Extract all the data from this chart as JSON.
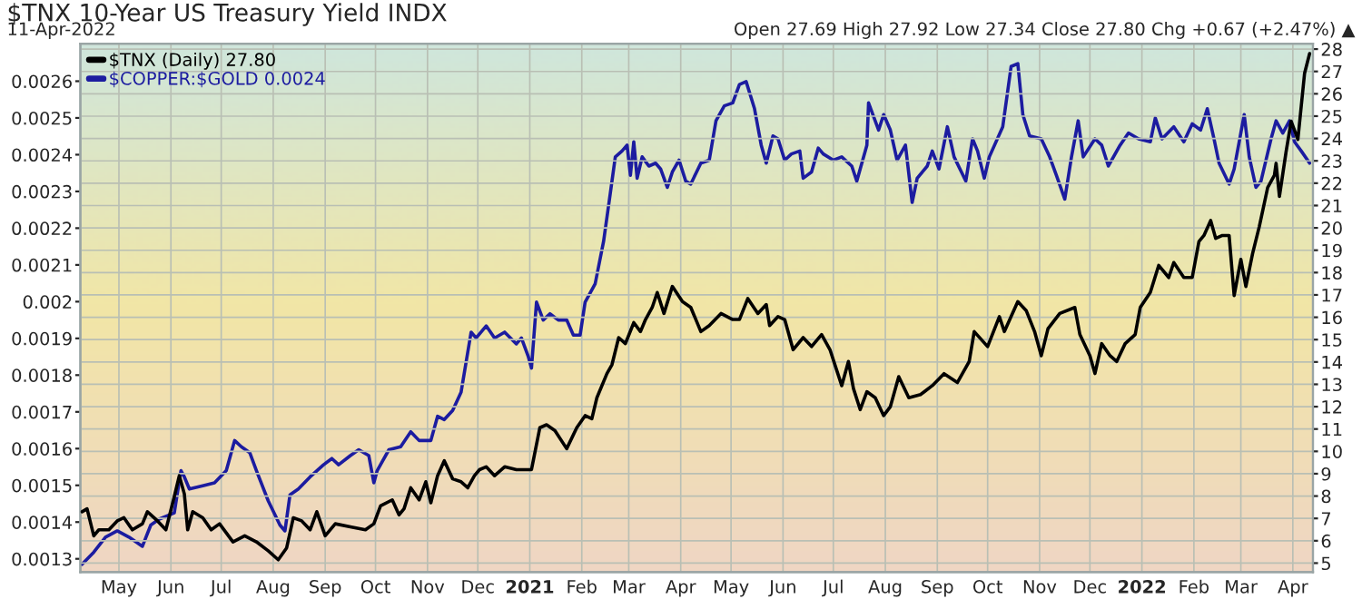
{
  "chart_data": {
    "type": "line",
    "title": "$TNX 10-Year US Treasury Yield INDX",
    "subtitle": "11-Apr-2022",
    "annotations": [
      "Open 27.69 High 27.92 Low 27.34 Close 27.80 Chg +0.67 (+2.47%) ▲"
    ],
    "series": [
      {
        "name": "$TNX (Daily) 27.80",
        "color": "#000000",
        "axis": "y2",
        "x": [
          "2020-04-09",
          "2020-04-12",
          "2020-04-16",
          "2020-04-19",
          "2020-04-25",
          "2020-04-30",
          "2020-05-04",
          "2020-05-09",
          "2020-05-15",
          "2020-05-18",
          "2020-05-24",
          "2020-05-29",
          "2020-06-03",
          "2020-06-06",
          "2020-06-09",
          "2020-06-11",
          "2020-06-14",
          "2020-06-20",
          "2020-06-25",
          "2020-06-30",
          "2020-07-08",
          "2020-07-15",
          "2020-07-22",
          "2020-07-29",
          "2020-08-04",
          "2020-08-09",
          "2020-08-13",
          "2020-08-18",
          "2020-08-23",
          "2020-08-27",
          "2020-09-01",
          "2020-09-07",
          "2020-09-16",
          "2020-09-25",
          "2020-09-30",
          "2020-10-04",
          "2020-10-11",
          "2020-10-15",
          "2020-10-18",
          "2020-10-22",
          "2020-10-27",
          "2020-10-31",
          "2020-11-03",
          "2020-11-07",
          "2020-11-11",
          "2020-11-16",
          "2020-11-21",
          "2020-11-25",
          "2020-11-29",
          "2020-12-02",
          "2020-12-06",
          "2020-12-11",
          "2020-12-17",
          "2020-12-24",
          "2021-01-02",
          "2021-01-07",
          "2021-01-11",
          "2021-01-16",
          "2021-01-23",
          "2021-01-29",
          "2021-02-03",
          "2021-02-07",
          "2021-02-10",
          "2021-02-16",
          "2021-02-19",
          "2021-02-23",
          "2021-02-27",
          "2021-03-04",
          "2021-03-08",
          "2021-03-11",
          "2021-03-15",
          "2021-03-18",
          "2021-03-22",
          "2021-03-27",
          "2021-04-02",
          "2021-04-07",
          "2021-04-13",
          "2021-04-18",
          "2021-04-25",
          "2021-05-02",
          "2021-05-06",
          "2021-05-11",
          "2021-05-17",
          "2021-05-22",
          "2021-05-24",
          "2021-05-29",
          "2021-06-02",
          "2021-06-07",
          "2021-06-13",
          "2021-06-18",
          "2021-06-24",
          "2021-06-29",
          "2021-07-06",
          "2021-07-10",
          "2021-07-13",
          "2021-07-17",
          "2021-07-21",
          "2021-07-26",
          "2021-07-31",
          "2021-08-04",
          "2021-08-09",
          "2021-08-15",
          "2021-08-22",
          "2021-08-29",
          "2021-09-05",
          "2021-09-13",
          "2021-09-20",
          "2021-09-23",
          "2021-10-01",
          "2021-10-08",
          "2021-10-11",
          "2021-10-19",
          "2021-10-24",
          "2021-10-29",
          "2021-11-02",
          "2021-11-06",
          "2021-11-13",
          "2021-11-22",
          "2021-11-25",
          "2021-12-01",
          "2021-12-04",
          "2021-12-08",
          "2021-12-13",
          "2021-12-17",
          "2021-12-22",
          "2021-12-28",
          "2021-12-31",
          "2022-01-06",
          "2022-01-11",
          "2022-01-17",
          "2022-01-20",
          "2022-01-26",
          "2022-01-31",
          "2022-02-04",
          "2022-02-07",
          "2022-02-11",
          "2022-02-14",
          "2022-02-18",
          "2022-02-22",
          "2022-02-25",
          "2022-03-01",
          "2022-03-04",
          "2022-03-08",
          "2022-03-12",
          "2022-03-17",
          "2022-03-21",
          "2022-03-22",
          "2022-03-24",
          "2022-03-28",
          "2022-03-31",
          "2022-04-04",
          "2022-04-08",
          "2022-04-11"
        ],
        "values": [
          7.3,
          7.43,
          6.22,
          6.49,
          6.49,
          6.89,
          7.03,
          6.49,
          6.76,
          7.3,
          6.89,
          6.49,
          7.97,
          8.91,
          8.1,
          6.49,
          7.3,
          7.03,
          6.49,
          6.76,
          5.95,
          6.22,
          5.95,
          5.55,
          5.15,
          5.68,
          7.03,
          6.89,
          6.49,
          7.3,
          6.22,
          6.76,
          6.62,
          6.49,
          6.76,
          7.56,
          7.83,
          7.16,
          7.43,
          8.37,
          7.83,
          8.64,
          7.7,
          8.91,
          9.58,
          8.77,
          8.64,
          8.37,
          8.91,
          9.18,
          9.31,
          8.91,
          9.31,
          9.18,
          9.18,
          11.06,
          11.19,
          10.93,
          10.12,
          11.06,
          11.6,
          11.46,
          12.4,
          13.48,
          13.88,
          15.09,
          14.82,
          15.76,
          15.36,
          15.9,
          16.44,
          17.11,
          16.17,
          17.38,
          16.7,
          16.44,
          15.36,
          15.63,
          16.17,
          15.9,
          15.9,
          16.84,
          16.17,
          16.57,
          15.63,
          16.03,
          15.9,
          14.55,
          15.09,
          14.69,
          15.23,
          14.55,
          12.94,
          14.02,
          12.81,
          11.87,
          12.67,
          12.4,
          11.6,
          12.0,
          13.34,
          12.4,
          12.54,
          12.94,
          13.48,
          13.08,
          14.02,
          15.36,
          14.69,
          16.03,
          15.36,
          16.7,
          16.3,
          15.36,
          14.28,
          15.49,
          16.17,
          16.44,
          15.23,
          14.28,
          13.48,
          14.82,
          14.28,
          14.02,
          14.82,
          15.23,
          16.44,
          17.11,
          18.32,
          17.78,
          18.45,
          17.78,
          17.78,
          19.39,
          19.66,
          20.33,
          19.53,
          19.66,
          19.66,
          16.97,
          18.59,
          17.38,
          18.85,
          20.06,
          21.81,
          22.35,
          22.89,
          21.41,
          23.42,
          24.77,
          23.96,
          26.92,
          27.8
        ]
      },
      {
        "name": "$COPPER:$GOLD 0.0024",
        "color": "#1c1ca0",
        "axis": "y",
        "x": [
          "2020-04-09",
          "2020-04-16",
          "2020-04-23",
          "2020-04-30",
          "2020-05-07",
          "2020-05-15",
          "2020-05-20",
          "2020-05-25",
          "2020-06-03",
          "2020-06-07",
          "2020-06-09",
          "2020-06-12",
          "2020-06-20",
          "2020-06-27",
          "2020-07-04",
          "2020-07-09",
          "2020-07-13",
          "2020-07-18",
          "2020-07-22",
          "2020-07-29",
          "2020-08-05",
          "2020-08-08",
          "2020-08-11",
          "2020-08-16",
          "2020-08-23",
          "2020-08-31",
          "2020-09-05",
          "2020-09-09",
          "2020-09-16",
          "2020-09-21",
          "2020-09-27",
          "2020-09-30",
          "2020-10-02",
          "2020-10-09",
          "2020-10-16",
          "2020-10-22",
          "2020-10-27",
          "2020-11-03",
          "2020-11-07",
          "2020-11-11",
          "2020-11-16",
          "2020-11-21",
          "2020-11-27",
          "2020-11-30",
          "2020-12-06",
          "2020-12-11",
          "2020-12-17",
          "2020-12-24",
          "2020-12-27",
          "2020-12-31",
          "2021-01-02",
          "2021-01-05",
          "2021-01-09",
          "2021-01-13",
          "2021-01-18",
          "2021-01-23",
          "2021-01-27",
          "2021-01-31",
          "2021-02-03",
          "2021-02-09",
          "2021-02-14",
          "2021-02-18",
          "2021-02-21",
          "2021-02-25",
          "2021-02-28",
          "2021-03-02",
          "2021-03-04",
          "2021-03-06",
          "2021-03-09",
          "2021-03-13",
          "2021-03-17",
          "2021-03-20",
          "2021-03-24",
          "2021-03-27",
          "2021-03-31",
          "2021-04-04",
          "2021-04-07",
          "2021-04-13",
          "2021-04-18",
          "2021-04-22",
          "2021-04-27",
          "2021-05-02",
          "2021-05-06",
          "2021-05-10",
          "2021-05-15",
          "2021-05-19",
          "2021-05-22",
          "2021-05-26",
          "2021-05-29",
          "2021-06-02",
          "2021-06-06",
          "2021-06-11",
          "2021-06-13",
          "2021-06-18",
          "2021-06-22",
          "2021-06-25",
          "2021-07-01",
          "2021-07-06",
          "2021-07-12",
          "2021-07-15",
          "2021-07-21",
          "2021-07-22",
          "2021-07-28",
          "2021-07-31",
          "2021-08-04",
          "2021-08-08",
          "2021-08-13",
          "2021-08-17",
          "2021-08-20",
          "2021-08-26",
          "2021-08-29",
          "2021-09-02",
          "2021-09-07",
          "2021-09-11",
          "2021-09-18",
          "2021-09-22",
          "2021-09-25",
          "2021-09-29",
          "2021-10-02",
          "2021-10-10",
          "2021-10-15",
          "2021-10-19",
          "2021-10-22",
          "2021-10-26",
          "2021-11-02",
          "2021-11-07",
          "2021-11-11",
          "2021-11-16",
          "2021-11-20",
          "2021-11-24",
          "2021-11-27",
          "2021-12-04",
          "2021-12-08",
          "2021-12-12",
          "2021-12-19",
          "2021-12-24",
          "2021-12-30",
          "2022-01-06",
          "2022-01-09",
          "2022-01-13",
          "2022-01-20",
          "2022-01-26",
          "2022-01-31",
          "2022-02-05",
          "2022-02-09",
          "2022-02-13",
          "2022-02-16",
          "2022-02-22",
          "2022-02-25",
          "2022-03-03",
          "2022-03-06",
          "2022-03-10",
          "2022-03-13",
          "2022-03-19",
          "2022-03-22",
          "2022-03-26",
          "2022-03-30",
          "2022-04-02",
          "2022-04-06",
          "2022-04-11"
        ],
        "values": [
          0.001285,
          0.001318,
          0.001359,
          0.001376,
          0.001359,
          0.001334,
          0.001392,
          0.001408,
          0.001425,
          0.00154,
          0.001523,
          0.00149,
          0.001499,
          0.001507,
          0.00154,
          0.001622,
          0.001605,
          0.001589,
          0.00154,
          0.001458,
          0.001392,
          0.001376,
          0.001474,
          0.00149,
          0.001523,
          0.001556,
          0.001573,
          0.001556,
          0.001581,
          0.001597,
          0.001581,
          0.001507,
          0.00154,
          0.001597,
          0.001605,
          0.001646,
          0.001622,
          0.001622,
          0.001688,
          0.001679,
          0.001704,
          0.001753,
          0.001917,
          0.001901,
          0.001934,
          0.001901,
          0.001917,
          0.001885,
          0.001901,
          0.001852,
          0.001819,
          0.001999,
          0.00195,
          0.001967,
          0.00195,
          0.00195,
          0.001909,
          0.001909,
          0.001999,
          0.002049,
          0.002164,
          0.002295,
          0.002394,
          0.00241,
          0.002426,
          0.002344,
          0.002435,
          0.002336,
          0.002394,
          0.002369,
          0.002377,
          0.002361,
          0.002311,
          0.002353,
          0.002385,
          0.002328,
          0.00232,
          0.002377,
          0.002385,
          0.002492,
          0.002533,
          0.002541,
          0.002591,
          0.002599,
          0.002525,
          0.002426,
          0.002377,
          0.002451,
          0.002443,
          0.002385,
          0.002402,
          0.00241,
          0.002336,
          0.002353,
          0.002418,
          0.002402,
          0.002385,
          0.002394,
          0.002369,
          0.002328,
          0.002426,
          0.002541,
          0.002467,
          0.002509,
          0.002467,
          0.002385,
          0.002426,
          0.00227,
          0.002336,
          0.002369,
          0.00241,
          0.002361,
          0.002476,
          0.002394,
          0.002328,
          0.002443,
          0.00241,
          0.002336,
          0.002394,
          0.002476,
          0.00264,
          0.002648,
          0.002509,
          0.002451,
          0.002443,
          0.002394,
          0.002344,
          0.002279,
          0.002394,
          0.002492,
          0.002394,
          0.002443,
          0.002426,
          0.002369,
          0.002426,
          0.002459,
          0.002443,
          0.002435,
          0.0025,
          0.002443,
          0.002476,
          0.002435,
          0.002484,
          0.002467,
          0.002525,
          0.002443,
          0.002377,
          0.00232,
          0.002361,
          0.002509,
          0.002394,
          0.002311,
          0.002328,
          0.002443,
          0.002492,
          0.002459,
          0.002492,
          0.002435,
          0.00241,
          0.002377
        ]
      }
    ],
    "xlim": [
      "2020-04-08",
      "2022-04-13"
    ],
    "xticks": [
      {
        "value": "2020-05-01",
        "label": "May"
      },
      {
        "value": "2020-06-01",
        "label": "Jun"
      },
      {
        "value": "2020-07-01",
        "label": "Jul"
      },
      {
        "value": "2020-08-01",
        "label": "Aug"
      },
      {
        "value": "2020-09-01",
        "label": "Sep"
      },
      {
        "value": "2020-10-01",
        "label": "Oct"
      },
      {
        "value": "2020-11-01",
        "label": "Nov"
      },
      {
        "value": "2020-12-01",
        "label": "Dec"
      },
      {
        "value": "2021-01-01",
        "label": "2021"
      },
      {
        "value": "2021-02-01",
        "label": "Feb"
      },
      {
        "value": "2021-03-01",
        "label": "Mar"
      },
      {
        "value": "2021-04-01",
        "label": "Apr"
      },
      {
        "value": "2021-05-01",
        "label": "May"
      },
      {
        "value": "2021-06-01",
        "label": "Jun"
      },
      {
        "value": "2021-07-01",
        "label": "Jul"
      },
      {
        "value": "2021-08-01",
        "label": "Aug"
      },
      {
        "value": "2021-09-01",
        "label": "Sep"
      },
      {
        "value": "2021-10-01",
        "label": "Oct"
      },
      {
        "value": "2021-11-01",
        "label": "Nov"
      },
      {
        "value": "2021-12-01",
        "label": "Dec"
      },
      {
        "value": "2022-01-01",
        "label": "2022"
      },
      {
        "value": "2022-02-01",
        "label": "Feb"
      },
      {
        "value": "2022-03-01",
        "label": "Mar"
      },
      {
        "value": "2022-04-01",
        "label": "Apr"
      }
    ],
    "ylim": [
      0.001264,
      0.002702
    ],
    "yticks": [
      0.0013,
      0.0014,
      0.0015,
      0.0016,
      0.0017,
      0.0018,
      0.0019,
      0.002,
      0.0021,
      0.0022,
      0.0023,
      0.0024,
      0.0025,
      0.0026
    ],
    "y2lim": [
      4.6,
      28.24
    ],
    "y2ticks": [
      5,
      6,
      7,
      8,
      9,
      10,
      11,
      12,
      13,
      14,
      15,
      16,
      17,
      18,
      19,
      20,
      21,
      22,
      23,
      24,
      25,
      26,
      27,
      28
    ],
    "grid": true,
    "legend": "top left",
    "line_style": "solid"
  }
}
